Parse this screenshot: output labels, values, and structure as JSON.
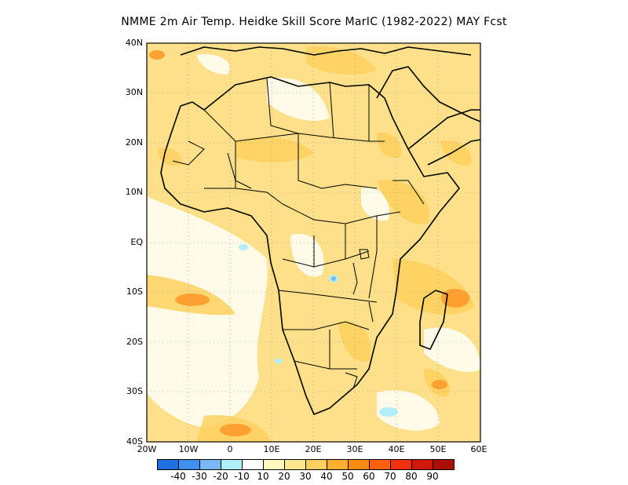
{
  "title": "NMME  2m Air Temp. Heidke Skill Score MarIC (1982-2022) MAY Fcst",
  "axes": {
    "lat_labels": [
      "40N",
      "30N",
      "20N",
      "10N",
      "EQ",
      "10S",
      "20S",
      "30S",
      "40S"
    ],
    "lon_labels": [
      "20W",
      "10W",
      "0",
      "10E",
      "20E",
      "30E",
      "40E",
      "50E",
      "60E"
    ]
  },
  "colorbar": {
    "colors": [
      "#1f6fe0",
      "#3f8ff0",
      "#7ab8f5",
      "#b0eefa",
      "#ffffff",
      "#fff8c0",
      "#ffe890",
      "#ffd060",
      "#ffb030",
      "#ff8c10",
      "#ff6010",
      "#f03010",
      "#d01808",
      "#a81004"
    ],
    "labels": [
      "-40",
      "-30",
      "-20",
      "-10",
      "10",
      "20",
      "30",
      "40",
      "50",
      "60",
      "70",
      "80",
      "90"
    ]
  },
  "map": {
    "lat_range": [
      -40,
      40
    ],
    "lon_range": [
      -20,
      60
    ],
    "background": "#ffd878"
  }
}
